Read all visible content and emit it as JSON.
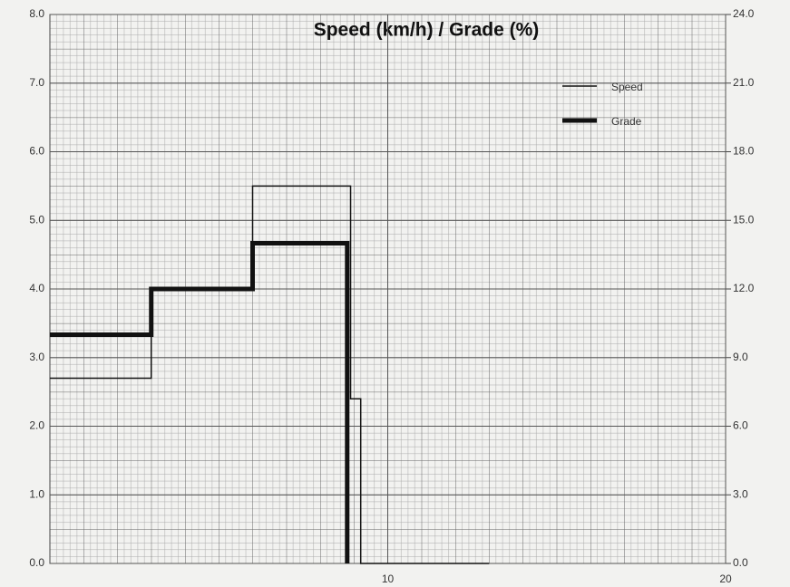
{
  "chart_data": {
    "type": "step",
    "title": "Speed (km/h) / Grade (%)",
    "series": [
      {
        "name": "Speed",
        "color": "#111111",
        "width": 1.5,
        "x": [
          0,
          3,
          6,
          8.9,
          9.2,
          13
        ],
        "values": [
          2.7,
          4.0,
          5.5,
          2.4,
          0,
          0
        ]
      },
      {
        "name": "Grade",
        "color": "#111111",
        "width": 5,
        "axis": "y2",
        "x": [
          0,
          3,
          6,
          8.8
        ],
        "values": [
          10,
          12,
          14,
          0
        ]
      }
    ],
    "xlim": [
      0,
      20
    ],
    "xticks": [
      10,
      20
    ],
    "ylim": [
      0,
      8
    ],
    "yticks": [
      {
        "value": 0,
        "label": "0.0"
      },
      {
        "value": 1,
        "label": "1.0"
      },
      {
        "value": 2,
        "label": "2.0"
      },
      {
        "value": 3,
        "label": "3.0"
      },
      {
        "value": 4,
        "label": "4.0"
      },
      {
        "value": 5,
        "label": "5.0"
      },
      {
        "value": 6,
        "label": "6.0"
      },
      {
        "value": 7,
        "label": "7.0"
      },
      {
        "value": 8,
        "label": "8.0"
      }
    ],
    "y2lim": [
      0,
      24
    ],
    "y2ticks": [
      {
        "value": 0,
        "label": "0.0"
      },
      {
        "value": 3,
        "label": "3.0"
      },
      {
        "value": 6,
        "label": "6.0"
      },
      {
        "value": 9,
        "label": "9.0"
      },
      {
        "value": 12,
        "label": "12.0"
      },
      {
        "value": 15,
        "label": "15.0"
      },
      {
        "value": 18,
        "label": "18.0"
      },
      {
        "value": 21,
        "label": "21.0"
      },
      {
        "value": 24,
        "label": "24.0"
      }
    ],
    "grid": true,
    "legend": "upper right"
  }
}
